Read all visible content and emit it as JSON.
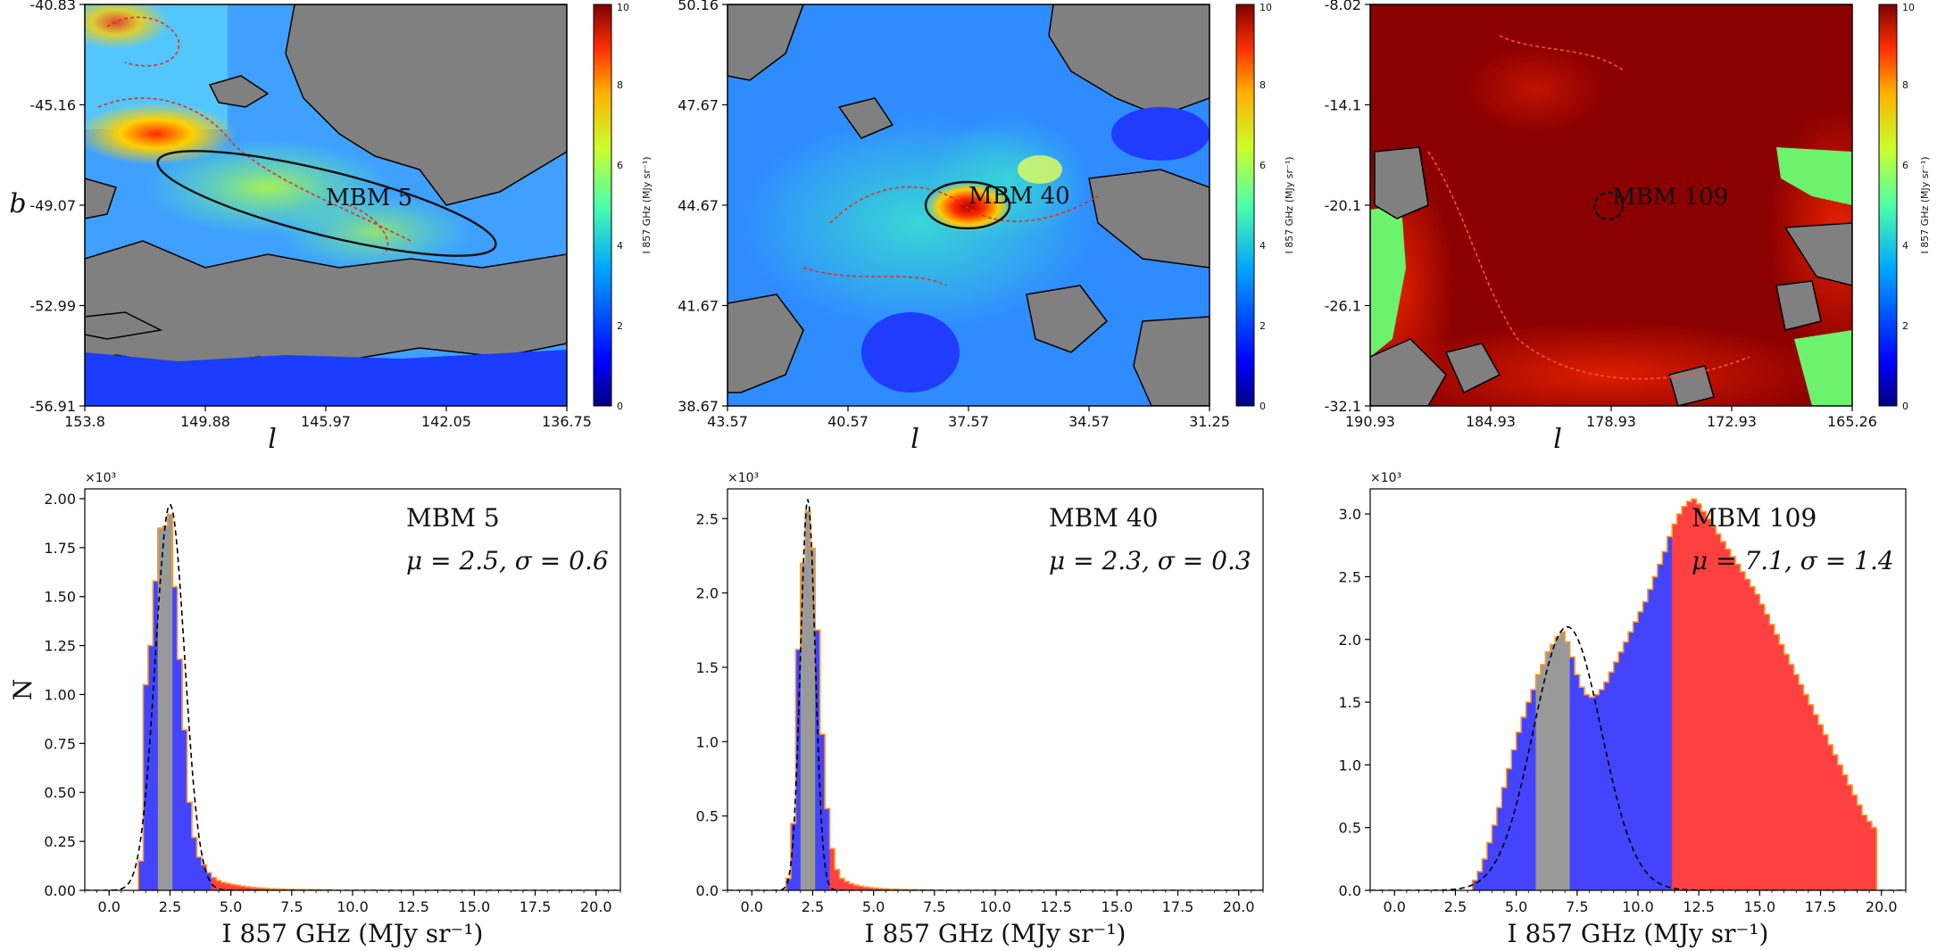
{
  "colors": {
    "gray": "#808080",
    "blue_fill": "#4444ff",
    "red_fill": "#ff4040",
    "hist_gray": "#999999",
    "outline": "#ff9a2e",
    "dark_red": "#8b0000"
  },
  "colorbar": {
    "label": "I 857 GHz (MJy sr⁻¹)",
    "ticks": [
      "0",
      "2",
      "4",
      "6",
      "8",
      "10"
    ]
  },
  "chart_data": [
    {
      "type": "heatmap",
      "panel": "map",
      "cloud": "MBM 5",
      "xlabel": "l",
      "ylabel": "b",
      "x_ticks": [
        "153.8",
        "149.88",
        "145.97",
        "142.05",
        "136.75"
      ],
      "y_ticks": [
        "-40.83",
        "-45.16",
        "-49.07",
        "-52.99",
        "-56.91"
      ],
      "colorbar_range": [
        0,
        10
      ],
      "base_color": "#3fa0ff"
    },
    {
      "type": "heatmap",
      "panel": "map",
      "cloud": "MBM 40",
      "xlabel": "l",
      "ylabel": "",
      "x_ticks": [
        "43.57",
        "40.57",
        "37.57",
        "34.57",
        "31.25"
      ],
      "y_ticks": [
        "50.16",
        "47.67",
        "44.67",
        "41.67",
        "38.67"
      ],
      "colorbar_range": [
        0,
        10
      ],
      "base_color": "#2f8cff"
    },
    {
      "type": "heatmap",
      "panel": "map",
      "cloud": "MBM 109",
      "xlabel": "l",
      "ylabel": "",
      "x_ticks": [
        "190.93",
        "184.93",
        "178.93",
        "172.93",
        "165.26"
      ],
      "y_ticks": [
        "-8.02",
        "-14.1",
        "-20.1",
        "-26.1",
        "-32.1"
      ],
      "colorbar_range": [
        0,
        10
      ],
      "base_color": "#8b0000"
    },
    {
      "type": "bar",
      "panel": "histogram",
      "cloud": "MBM 5",
      "annotation_name": "MBM 5",
      "annotation_params": "μ = 2.5,  σ = 0.6",
      "mu": 2.5,
      "sigma": 0.6,
      "peak": 1.97,
      "multiplier": "×10³",
      "xlabel": "I 857 GHz (MJy sr⁻¹)",
      "ylabel": "N",
      "xlim": [
        -1,
        21
      ],
      "ylim": [
        0,
        2.05
      ],
      "x_ticks": [
        "0.0",
        "2.5",
        "5.0",
        "7.5",
        "10.0",
        "12.5",
        "15.0",
        "17.5",
        "20.0"
      ],
      "y_ticks": [
        "0.00",
        "0.25",
        "0.50",
        "0.75",
        "1.00",
        "1.25",
        "1.50",
        "1.75",
        "2.00"
      ],
      "bin_start": 1.2,
      "bin_width": 0.2,
      "gray_range": [
        2.0,
        2.6
      ],
      "red_from": 4.2,
      "counts": [
        0.15,
        1.05,
        1.25,
        1.58,
        1.85,
        1.86,
        1.92,
        1.55,
        1.18,
        0.82,
        0.45,
        0.27,
        0.17,
        0.13,
        0.09,
        0.065,
        0.05,
        0.04,
        0.035,
        0.03,
        0.026,
        0.022,
        0.018,
        0.015,
        0.013,
        0.011,
        0.009,
        0.008,
        0.007,
        0.006,
        0.005,
        0.005,
        0.004,
        0.004,
        0.003,
        0.003,
        0.003,
        0.002,
        0.002,
        0.002
      ]
    },
    {
      "type": "bar",
      "panel": "histogram",
      "cloud": "MBM 40",
      "annotation_name": "MBM 40",
      "annotation_params": "μ = 2.3,  σ = 0.3",
      "mu": 2.3,
      "sigma": 0.3,
      "peak": 2.63,
      "multiplier": "×10³",
      "xlabel": "I 857 GHz (MJy sr⁻¹)",
      "ylabel": "",
      "xlim": [
        -1,
        21
      ],
      "ylim": [
        0,
        2.7
      ],
      "x_ticks": [
        "0.0",
        "2.5",
        "5.0",
        "7.5",
        "10.0",
        "12.5",
        "15.0",
        "17.5",
        "20.0"
      ],
      "y_ticks": [
        "0.0",
        "0.5",
        "1.0",
        "1.5",
        "2.0",
        "2.5"
      ],
      "bin_start": 1.4,
      "bin_width": 0.2,
      "gray_range": [
        2.0,
        2.6
      ],
      "red_from": 3.2,
      "counts": [
        0.08,
        0.45,
        1.62,
        2.2,
        2.55,
        2.3,
        1.75,
        1.05,
        0.55,
        0.28,
        0.14,
        0.08,
        0.06,
        0.045,
        0.035,
        0.028,
        0.022,
        0.018,
        0.015,
        0.012,
        0.01,
        0.008,
        0.007,
        0.006,
        0.005,
        0.004,
        0.004,
        0.003,
        0.003,
        0.002
      ]
    },
    {
      "type": "bar",
      "panel": "histogram",
      "cloud": "MBM 109",
      "annotation_name": "MBM 109",
      "annotation_params": "μ = 7.1,  σ = 1.4",
      "mu": 7.1,
      "sigma": 1.4,
      "peak": 2.1,
      "multiplier": "×10³",
      "xlabel": "I 857 GHz (MJy sr⁻¹)",
      "ylabel": "",
      "xlim": [
        -1,
        21
      ],
      "ylim": [
        0,
        3.2
      ],
      "x_ticks": [
        "0.0",
        "2.5",
        "5.0",
        "7.5",
        "10.0",
        "12.5",
        "15.0",
        "17.5",
        "20.0"
      ],
      "y_ticks": [
        "0.0",
        "0.5",
        "1.0",
        "1.5",
        "2.0",
        "2.5",
        "3.0"
      ],
      "bin_start": 3.2,
      "bin_width": 0.2,
      "gray_range": [
        5.8,
        7.2
      ],
      "red_from": 11.4,
      "counts": [
        0.08,
        0.15,
        0.25,
        0.38,
        0.52,
        0.66,
        0.82,
        0.97,
        1.12,
        1.26,
        1.38,
        1.5,
        1.6,
        1.72,
        1.8,
        1.9,
        1.96,
        2.02,
        2.06,
        1.98,
        1.86,
        1.72,
        1.62,
        1.56,
        1.54,
        1.56,
        1.6,
        1.66,
        1.74,
        1.82,
        1.9,
        1.98,
        2.06,
        2.14,
        2.22,
        2.3,
        2.4,
        2.5,
        2.6,
        2.7,
        2.82,
        2.92,
        3.0,
        3.06,
        3.1,
        3.12,
        3.08,
        3.02,
        2.96,
        2.9,
        2.84,
        2.78,
        2.72,
        2.66,
        2.6,
        2.54,
        2.48,
        2.42,
        2.36,
        2.28,
        2.2,
        2.12,
        2.04,
        1.96,
        1.88,
        1.8,
        1.72,
        1.64,
        1.56,
        1.48,
        1.4,
        1.32,
        1.24,
        1.16,
        1.08,
        1.0,
        0.92,
        0.84,
        0.76,
        0.68,
        0.6,
        0.55,
        0.5
      ]
    }
  ]
}
